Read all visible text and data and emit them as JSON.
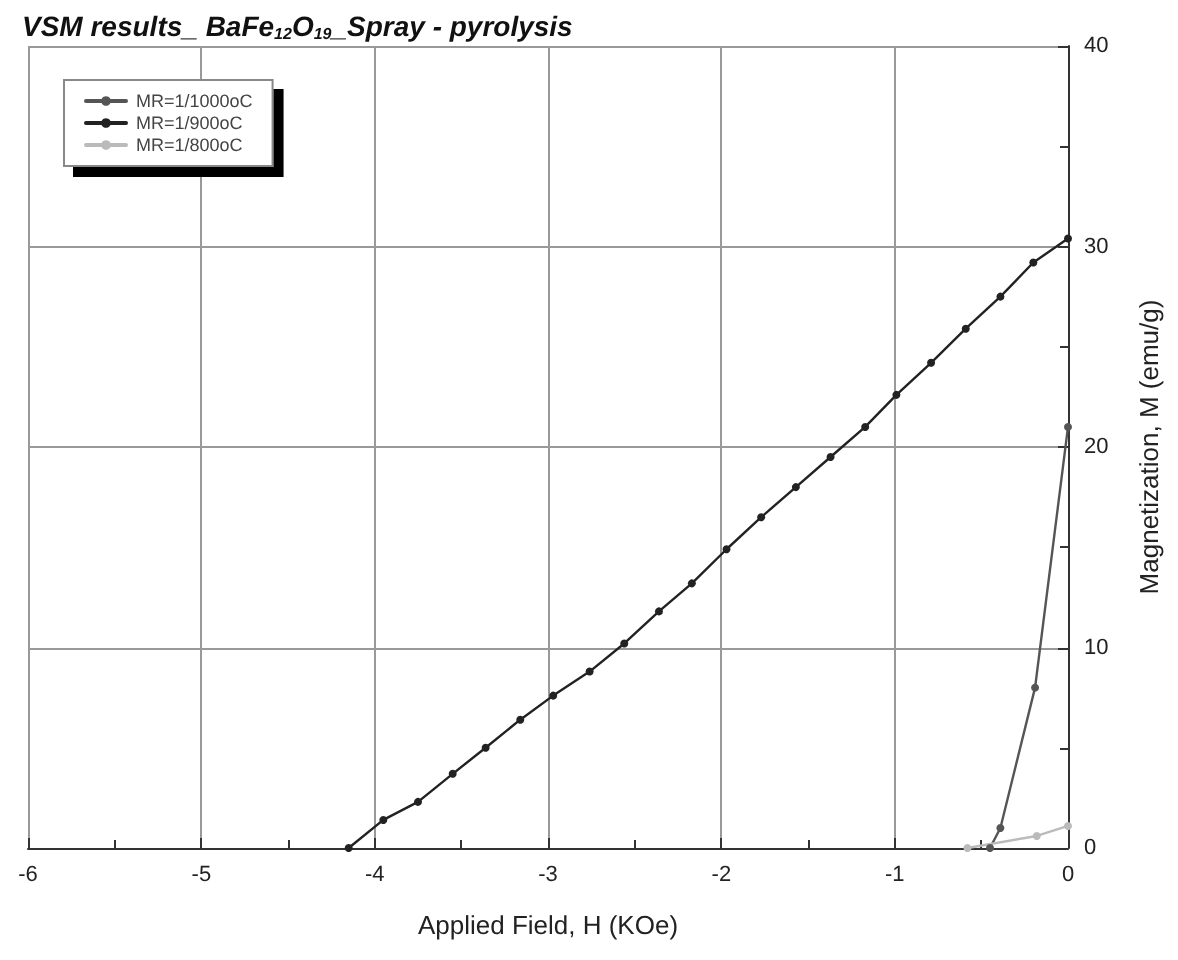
{
  "chart_data": {
    "type": "line",
    "title": "VSM results_ BaFe$_{12}$O$_{19}$_Spray - pyrolysis",
    "xlabel": "Applied Field, H (KOe)",
    "ylabel": "Magnetization, M (emu/g)",
    "xlim": [
      -6,
      0
    ],
    "xticks": [
      -6,
      -5,
      -4,
      -3,
      -2,
      -1,
      0
    ],
    "ylim": [
      0,
      40
    ],
    "yticks": [
      0,
      10,
      20,
      30,
      40
    ],
    "grid": true,
    "legend": "top left",
    "marker": "circle",
    "series": [
      {
        "name": "MR=1/1000oC",
        "color": "#555555",
        "x": [
          -0.45,
          -0.39,
          -0.19,
          0
        ],
        "values": [
          0,
          1,
          8,
          21
        ]
      },
      {
        "name": "MR=1/900oC",
        "color": "#222222",
        "x": [
          -4.15,
          -3.95,
          -3.75,
          -3.55,
          -3.36,
          -3.16,
          -2.97,
          -2.76,
          -2.56,
          -2.36,
          -2.17,
          -1.97,
          -1.77,
          -1.57,
          -1.37,
          -1.17,
          -0.99,
          -0.79,
          -0.59,
          -0.39,
          -0.2,
          0
        ],
        "values": [
          0,
          1.4,
          2.3,
          3.7,
          5.0,
          6.4,
          7.6,
          8.8,
          10.2,
          11.8,
          13.2,
          14.9,
          16.5,
          18.0,
          19.5,
          21.0,
          22.6,
          24.2,
          25.9,
          27.5,
          29.2,
          30.4
        ]
      },
      {
        "name": "MR=1/800oC",
        "color": "#bbbbbb",
        "x": [
          -0.58,
          -0.18,
          0
        ],
        "values": [
          0,
          0.6,
          1.1
        ]
      }
    ]
  }
}
